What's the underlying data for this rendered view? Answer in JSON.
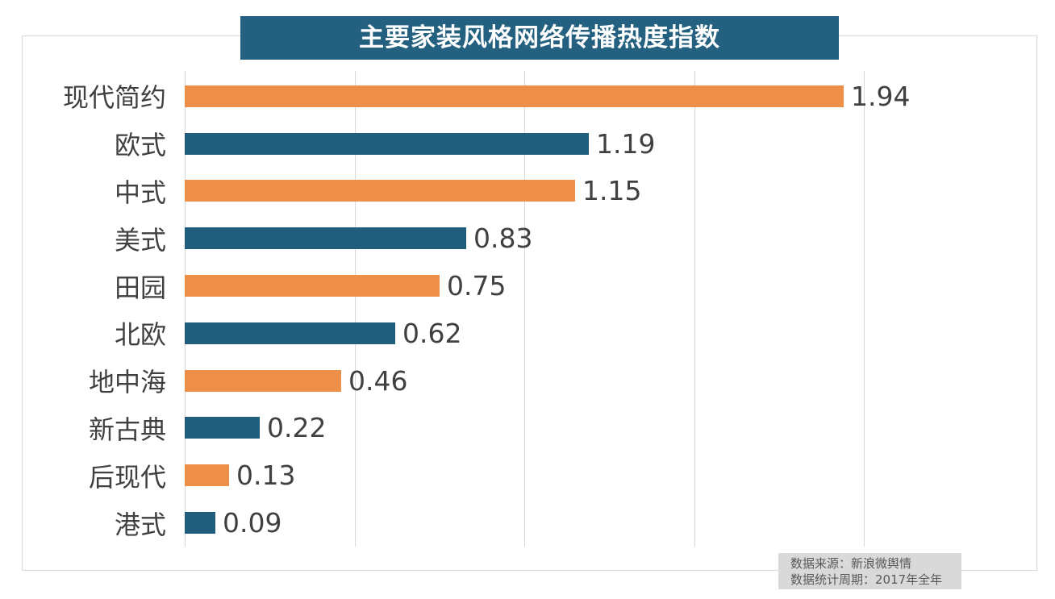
{
  "title": "主要家装风格网络传播热度指数",
  "colors": {
    "title_bg": "#24607f",
    "bar_orange": "#ed8f49",
    "bar_teal": "#215d7c",
    "grid": "#d9d9d9",
    "frame_border": "#d9d9d9",
    "label_text": "#404040",
    "source_bg": "#d9d9d9",
    "source_text": "#595959"
  },
  "source": {
    "line1": "数据来源：新浪微舆情",
    "line2": "数据统计周期：2017年全年"
  },
  "chart_data": {
    "type": "bar",
    "orientation": "horizontal",
    "title": "主要家装风格网络传播热度指数",
    "categories": [
      "现代简约",
      "欧式",
      "中式",
      "美式",
      "田园",
      "北欧",
      "地中海",
      "新古典",
      "后现代",
      "港式"
    ],
    "values": [
      1.94,
      1.19,
      1.15,
      0.83,
      0.75,
      0.62,
      0.46,
      0.22,
      0.13,
      0.09
    ],
    "value_labels": [
      "1.94",
      "1.19",
      "1.15",
      "0.83",
      "0.75",
      "0.62",
      "0.46",
      "0.22",
      "0.13",
      "0.09"
    ],
    "bar_color_pattern": [
      "#ed8f49",
      "#215d7c"
    ],
    "xlim": [
      0,
      2.5
    ],
    "gridline_interval": 0.5,
    "gridlines_shown_at": [
      0,
      0.5,
      1.0,
      1.5,
      2.0
    ],
    "legend": "none",
    "grid": "vertical-only"
  }
}
